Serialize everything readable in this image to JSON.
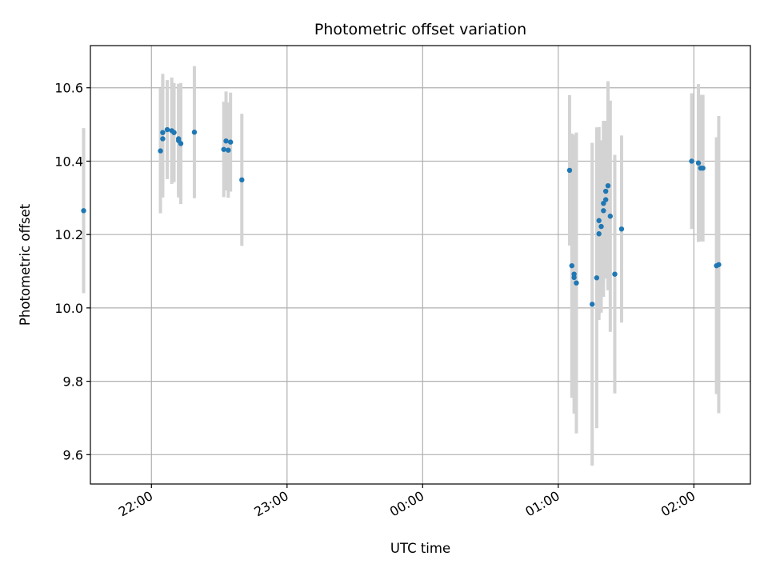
{
  "chart_data": {
    "type": "scatter",
    "title": "Photometric offset variation",
    "xlabel": "UTC time",
    "ylabel": "Photometric offset",
    "x_is_time": true,
    "xlim": [
      "21:33",
      "02:25"
    ],
    "ylim": [
      9.52,
      10.715
    ],
    "x_ticks": [
      "22:00",
      "23:00",
      "00:00",
      "01:00",
      "02:00"
    ],
    "y_ticks": [
      9.6,
      9.8,
      10.0,
      10.2,
      10.4,
      10.6
    ],
    "y_tick_labels": [
      "9.6",
      "9.8",
      "10.0",
      "10.2",
      "10.4",
      "10.6"
    ],
    "grid": true,
    "colors": {
      "point": "#1f77b4",
      "errorbar": "#d3d3d3",
      "grid": "#b0b0b0"
    },
    "points": [
      {
        "x": "21:30",
        "y": 10.265,
        "err": 0.225
      },
      {
        "x": "22:04",
        "y": 10.428,
        "err": 0.17
      },
      {
        "x": "22:05",
        "y": 10.478,
        "err": 0.16
      },
      {
        "x": "22:05",
        "y": 10.461,
        "err": 0.16
      },
      {
        "x": "22:07",
        "y": 10.486,
        "err": 0.135
      },
      {
        "x": "22:09",
        "y": 10.483,
        "err": 0.145
      },
      {
        "x": "22:10",
        "y": 10.478,
        "err": 0.135
      },
      {
        "x": "22:12",
        "y": 10.461,
        "err": 0.15
      },
      {
        "x": "22:12",
        "y": 10.456,
        "err": 0.155
      },
      {
        "x": "22:13",
        "y": 10.448,
        "err": 0.165
      },
      {
        "x": "22:19",
        "y": 10.479,
        "err": 0.18
      },
      {
        "x": "22:32",
        "y": 10.432,
        "err": 0.13
      },
      {
        "x": "22:33",
        "y": 10.455,
        "err": 0.135
      },
      {
        "x": "22:34",
        "y": 10.43,
        "err": 0.13
      },
      {
        "x": "22:35",
        "y": 10.452,
        "err": 0.135
      },
      {
        "x": "22:40",
        "y": 10.349,
        "err": 0.18
      },
      {
        "x": "01:05",
        "y": 10.375,
        "err": 0.205
      },
      {
        "x": "01:06",
        "y": 10.115,
        "err": 0.36
      },
      {
        "x": "01:07",
        "y": 10.083,
        "err": 0.33
      },
      {
        "x": "01:07",
        "y": 10.092,
        "err": 0.38
      },
      {
        "x": "01:08",
        "y": 10.068,
        "err": 0.41
      },
      {
        "x": "01:15",
        "y": 10.01,
        "err": 0.44
      },
      {
        "x": "01:17",
        "y": 10.082,
        "err": 0.41
      },
      {
        "x": "01:18",
        "y": 10.238,
        "err": 0.255
      },
      {
        "x": "01:18",
        "y": 10.202,
        "err": 0.235
      },
      {
        "x": "01:19",
        "y": 10.222,
        "err": 0.235
      },
      {
        "x": "01:20",
        "y": 10.265,
        "err": 0.235
      },
      {
        "x": "01:20",
        "y": 10.285,
        "err": 0.225
      },
      {
        "x": "01:21",
        "y": 10.318,
        "err": 0.19
      },
      {
        "x": "01:21",
        "y": 10.295,
        "err": 0.215
      },
      {
        "x": "01:22",
        "y": 10.333,
        "err": 0.285
      },
      {
        "x": "01:23",
        "y": 10.25,
        "err": 0.315
      },
      {
        "x": "01:25",
        "y": 10.092,
        "err": 0.325
      },
      {
        "x": "01:28",
        "y": 10.215,
        "err": 0.255
      },
      {
        "x": "01:59",
        "y": 10.4,
        "err": 0.185
      },
      {
        "x": "02:02",
        "y": 10.395,
        "err": 0.215
      },
      {
        "x": "02:03",
        "y": 10.381,
        "err": 0.2
      },
      {
        "x": "02:04",
        "y": 10.381,
        "err": 0.2
      },
      {
        "x": "02:10",
        "y": 10.115,
        "err": 0.35
      },
      {
        "x": "02:11",
        "y": 10.118,
        "err": 0.405
      }
    ]
  }
}
